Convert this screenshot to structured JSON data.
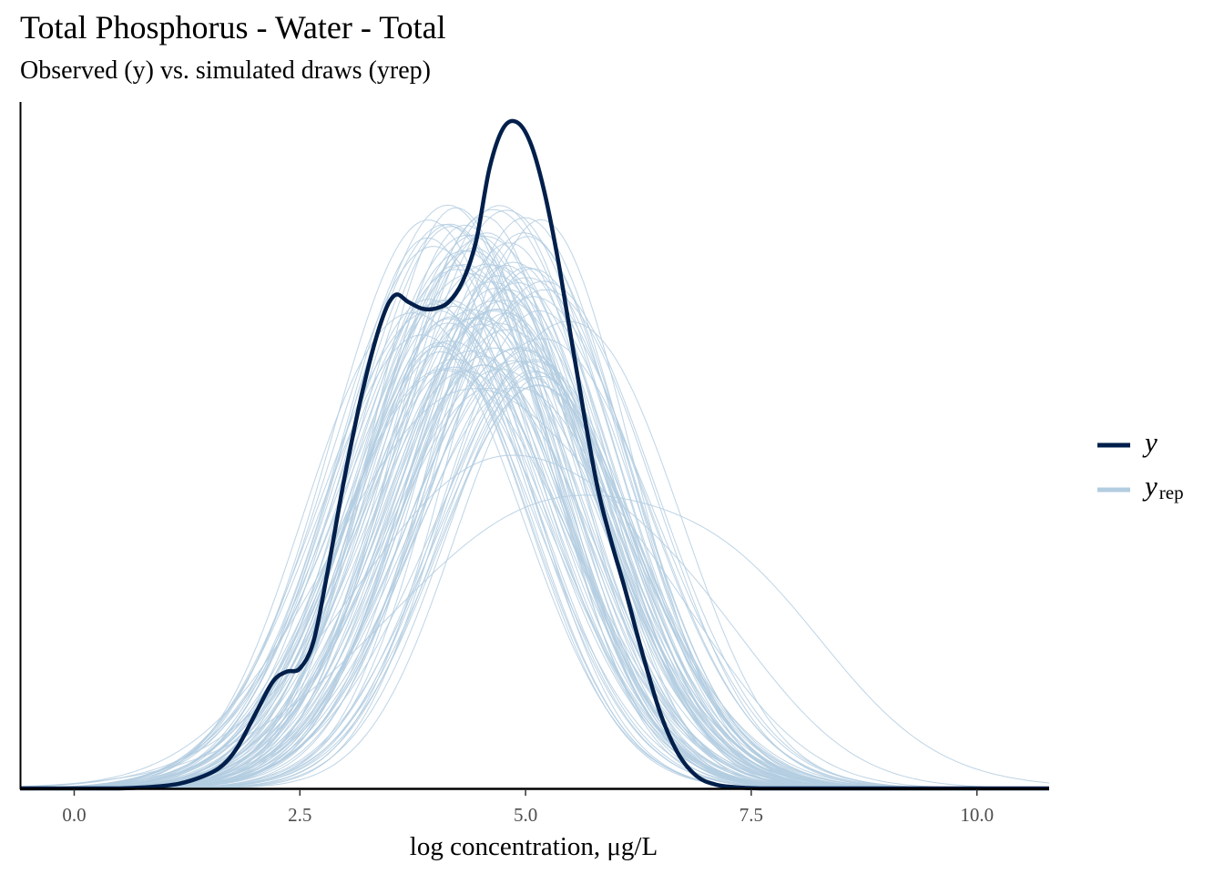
{
  "chart_data": {
    "type": "line",
    "title": "Total Phosphorus - Water - Total",
    "subtitle": "Observed (y) vs. simulated draws (yrep)",
    "xlabel": "log concentration, μg/L",
    "ylabel": "",
    "xlim": [
      -0.6,
      10.8
    ],
    "ylim": [
      0,
      1.03
    ],
    "x_ticks": [
      0.0,
      2.5,
      5.0,
      7.5,
      10.0
    ],
    "x_tick_labels": [
      "0.0",
      "2.5",
      "5.0",
      "7.5",
      "10.0"
    ],
    "y_axis_ticks_shown": false,
    "grid": false,
    "legend_position": "right",
    "legend": [
      {
        "key": "y",
        "label": "y",
        "color": "#011f4b"
      },
      {
        "key": "yrep",
        "label": "y",
        "subscript": "rep",
        "color": "#b3cde0"
      }
    ],
    "observed": {
      "name": "y",
      "color": "#011f4b",
      "x": [
        -0.6,
        0.0,
        0.5,
        1.0,
        1.3,
        1.6,
        1.8,
        2.0,
        2.2,
        2.35,
        2.5,
        2.65,
        2.8,
        3.0,
        3.2,
        3.4,
        3.55,
        3.7,
        3.85,
        4.0,
        4.15,
        4.3,
        4.45,
        4.6,
        4.75,
        4.9,
        5.05,
        5.2,
        5.35,
        5.5,
        5.65,
        5.8,
        5.95,
        6.1,
        6.3,
        6.5,
        6.7,
        6.9,
        7.1,
        7.3,
        7.6,
        8.0,
        9.0,
        10.8
      ],
      "y": [
        0.0,
        0.0,
        0.0,
        0.004,
        0.012,
        0.03,
        0.06,
        0.11,
        0.16,
        0.175,
        0.18,
        0.22,
        0.32,
        0.47,
        0.6,
        0.7,
        0.74,
        0.73,
        0.72,
        0.72,
        0.73,
        0.76,
        0.82,
        0.93,
        0.99,
        1.0,
        0.97,
        0.9,
        0.8,
        0.68,
        0.56,
        0.45,
        0.37,
        0.3,
        0.2,
        0.11,
        0.05,
        0.018,
        0.006,
        0.002,
        0.0,
        0.0,
        0.0,
        0.0
      ]
    },
    "replicated": {
      "name": "yrep",
      "color": "#b3cde0",
      "count": 100
    }
  }
}
